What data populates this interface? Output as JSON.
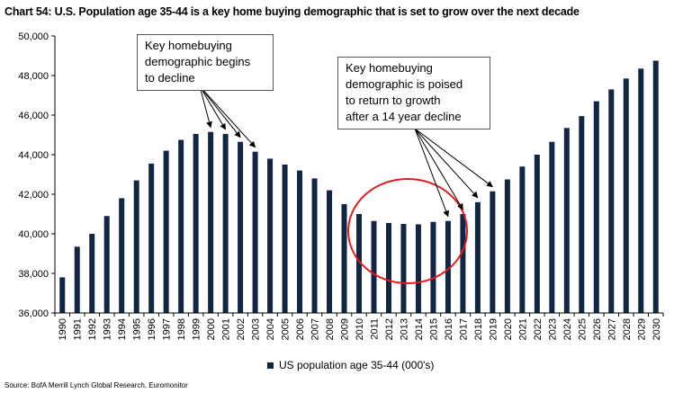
{
  "colors": {
    "bar": "#132545",
    "circle": "#e31b1b",
    "arrow": "#000000"
  },
  "chart_data": {
    "type": "bar",
    "title": "Chart 54: U.S. Population age 35-44 is a key home buying demographic that is set to grow over the next decade",
    "xlabel": "",
    "ylabel": "",
    "ylim": [
      36000,
      50000
    ],
    "y_ticks": [
      "36,000",
      "38,000",
      "40,000",
      "42,000",
      "44,000",
      "46,000",
      "48,000",
      "50,000"
    ],
    "grid": false,
    "legend_position": "bottom",
    "categories": [
      "1990",
      "1991",
      "1992",
      "1993",
      "1994",
      "1995",
      "1996",
      "1997",
      "1998",
      "1999",
      "2000",
      "2001",
      "2002",
      "2003",
      "2004",
      "2005",
      "2006",
      "2007",
      "2008",
      "2009",
      "2010",
      "2011",
      "2012",
      "2013",
      "2014",
      "2015",
      "2016",
      "2017",
      "2018",
      "2019",
      "2020",
      "2021",
      "2022",
      "2023",
      "2024",
      "2025",
      "2026",
      "2027",
      "2028",
      "2029",
      "2030"
    ],
    "series": [
      {
        "name": "US population age 35-44 (000's)",
        "values": [
          37800,
          39350,
          40000,
          40900,
          41800,
          42700,
          43550,
          44200,
          44750,
          45050,
          45150,
          45050,
          44650,
          44150,
          43800,
          43500,
          43200,
          42800,
          42200,
          41500,
          41000,
          40650,
          40550,
          40500,
          40480,
          40600,
          40650,
          41000,
          41600,
          42150,
          42750,
          43400,
          44000,
          44650,
          45350,
          45950,
          46700,
          47300,
          47850,
          48350,
          48750
        ]
      }
    ],
    "annotations": [
      {
        "id": "decline",
        "lines": [
          "Key homebuying",
          "demographic begins",
          "to decline"
        ],
        "targets": [
          "2000",
          "2001",
          "2002",
          "2003"
        ]
      },
      {
        "id": "growth",
        "lines": [
          "Key homebuying",
          "demographic is poised",
          "to return to growth",
          "after a 14 year decline"
        ],
        "targets": [
          "2016",
          "2017",
          "2018",
          "2019"
        ]
      }
    ],
    "source": "Source: BofA Merrill Lynch Global Research, Euromonitor"
  }
}
